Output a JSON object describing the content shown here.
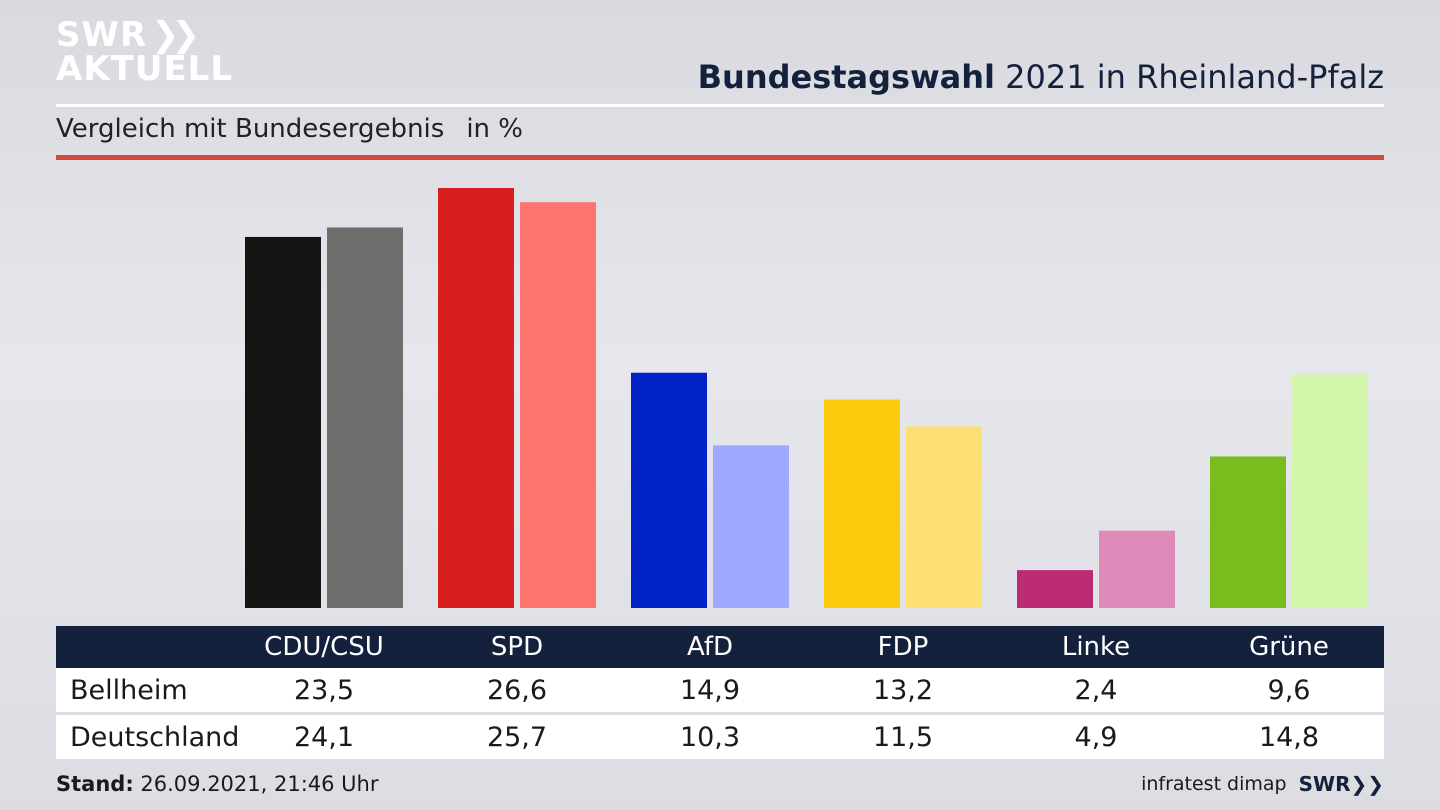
{
  "brand": {
    "line1": "SWR",
    "line2": "AKTUELL",
    "footer_logo": "SWR",
    "chevron_icon": "double-chevron-right-icon"
  },
  "header": {
    "title_bold": "Bundestagswahl",
    "title_rest": " 2021 in Rheinland-Pfalz",
    "subtitle": "Vergleich mit Bundesergebnis",
    "unit": "in %"
  },
  "rows": {
    "row1_label": "Bellheim",
    "row2_label": "Deutschland"
  },
  "footer": {
    "stand_label": "Stand:",
    "stand_value": " 26.09.2021, 21:46 Uhr",
    "source": "infratest dimap"
  },
  "colors": {
    "navy": "#14213d",
    "accent_red": "#d2483b"
  },
  "chart_data": {
    "type": "bar",
    "categories": [
      "CDU/CSU",
      "SPD",
      "AfD",
      "FDP",
      "Linke",
      "Grüne"
    ],
    "series": [
      {
        "name": "Bellheim",
        "values": [
          23.5,
          26.6,
          14.9,
          13.2,
          2.4,
          9.6
        ],
        "labels": [
          "23,5",
          "26,6",
          "14,9",
          "13,2",
          "2,4",
          "9,6"
        ],
        "colors": [
          "#141414",
          "#d71f1f",
          "#0021c6",
          "#fecb0c",
          "#bb2c73",
          "#79bc1e"
        ]
      },
      {
        "name": "Deutschland",
        "values": [
          24.1,
          25.7,
          10.3,
          11.5,
          4.9,
          14.8
        ],
        "labels": [
          "24,1",
          "25,7",
          "10,3",
          "11,5",
          "4,9",
          "14,8"
        ],
        "colors": [
          "#6f6e6c",
          "#fd7571",
          "#9eaafe",
          "#fde073",
          "#df8ab9",
          "#d3f6ab"
        ]
      }
    ],
    "ylim": [
      0,
      26.6
    ]
  }
}
